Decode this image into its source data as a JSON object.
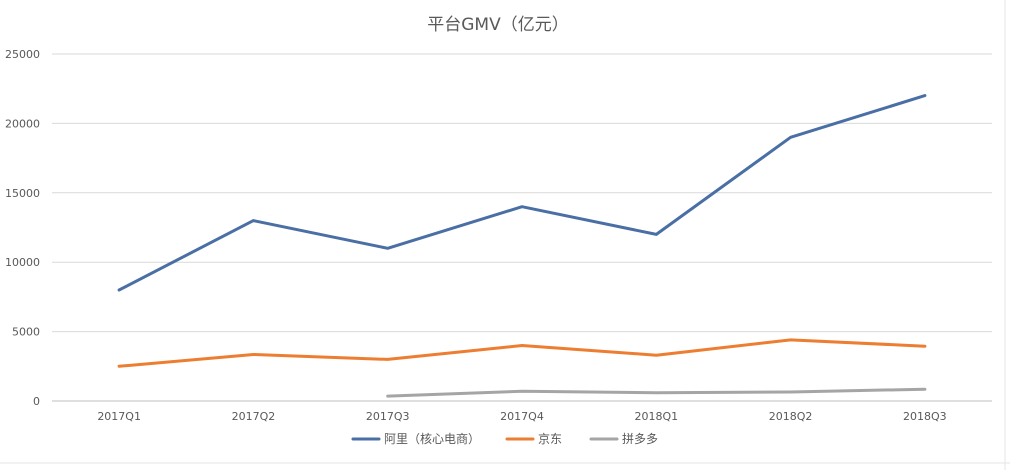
{
  "chart_data": {
    "type": "line",
    "title": "平台GMV（亿元）",
    "xlabel": "",
    "ylabel": "",
    "categories": [
      "2017Q1",
      "2017Q2",
      "2017Q3",
      "2017Q4",
      "2018Q1",
      "2018Q2",
      "2018Q3"
    ],
    "ylim": [
      0,
      25000
    ],
    "yticks": [
      "0",
      "5000",
      "10000",
      "15000",
      "20000",
      "25000"
    ],
    "grid": "horizontal",
    "legend_position": "bottom",
    "series": [
      {
        "name": "阿里（核心电商）",
        "color": "#4a6fa5",
        "values": [
          8000,
          13000,
          11000,
          14000,
          12000,
          19000,
          22000
        ]
      },
      {
        "name": "京东",
        "color": "#ed7d31",
        "values": [
          2500,
          3350,
          3000,
          4000,
          3300,
          4400,
          3950
        ]
      },
      {
        "name": "拼多多",
        "color": "#a5a5a5",
        "values": [
          null,
          null,
          350,
          700,
          600,
          650,
          850
        ]
      }
    ]
  }
}
